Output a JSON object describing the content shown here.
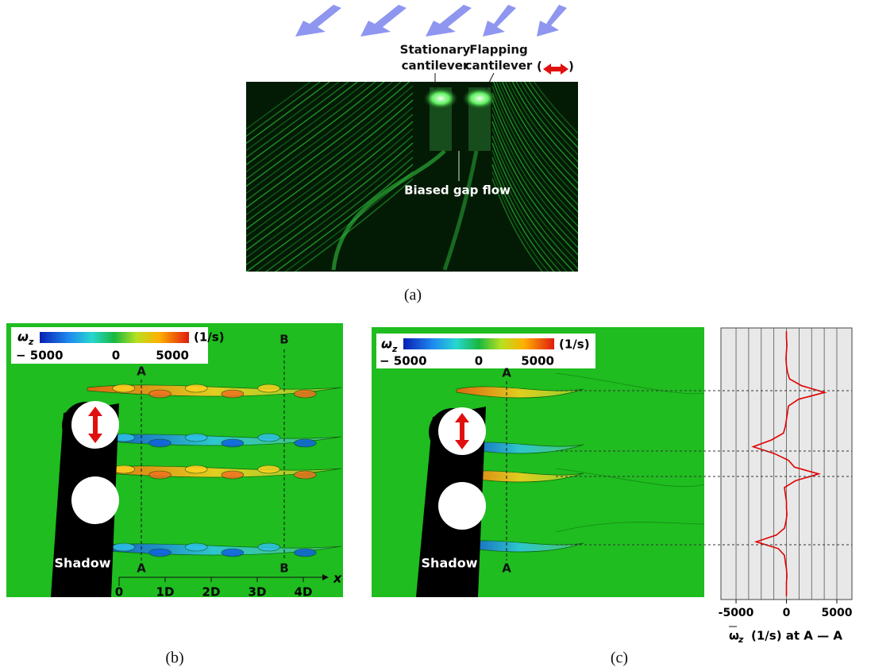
{
  "panel_a": {
    "stationary_label": [
      "Stationary",
      "cantilever"
    ],
    "flapping_label": [
      "Flapping",
      "cantilever"
    ],
    "flapping_paren_open": "(",
    "flapping_paren_close": ")",
    "gap_flow_label": "Biased gap flow",
    "caption": "(a)"
  },
  "panel_b": {
    "colorbar": {
      "symbol": "ω",
      "symbol_sub": "z",
      "unit": "(1/s)",
      "min_label": "− 5000",
      "mid_label": "0",
      "max_label": "5000"
    },
    "section_a": "A",
    "section_a_bottom": "A",
    "section_b": "B",
    "section_b_bottom": "B",
    "shadow_label": "Shadow",
    "x_axis_label": "x",
    "x_ticks": [
      "0",
      "1D",
      "2D",
      "3D",
      "4D"
    ],
    "caption": "(b)"
  },
  "panel_c": {
    "colorbar": {
      "symbol": "ω",
      "symbol_sub": "z",
      "unit": "(1/s)",
      "min_label": "− 5000",
      "mid_label": "0",
      "max_label": "5000"
    },
    "section_a": "A",
    "section_a_bottom": "A",
    "shadow_label": "Shadow",
    "profile": {
      "xlim": [
        -6500,
        6500
      ],
      "xticks": [
        -5000,
        0,
        5000
      ],
      "gridlines": [
        -5000,
        -3750,
        -2500,
        -1250,
        0,
        1250,
        2500,
        3750,
        5000
      ],
      "color": "#e00000",
      "values": [
        0,
        0,
        50,
        0,
        -50,
        0,
        100,
        300,
        1500,
        3800,
        1200,
        200,
        100,
        0,
        -100,
        -300,
        -1500,
        -3300,
        -1200,
        200,
        800,
        3200,
        900,
        -200,
        -100,
        0,
        0,
        50,
        -50,
        -200,
        -1000,
        -3000,
        -800,
        -200,
        -100,
        0,
        50,
        0,
        0,
        0
      ],
      "x_label": "(1/s) at A — A",
      "x_label_symbol": "ω",
      "x_label_sub": "z"
    },
    "caption": "(c)"
  }
}
